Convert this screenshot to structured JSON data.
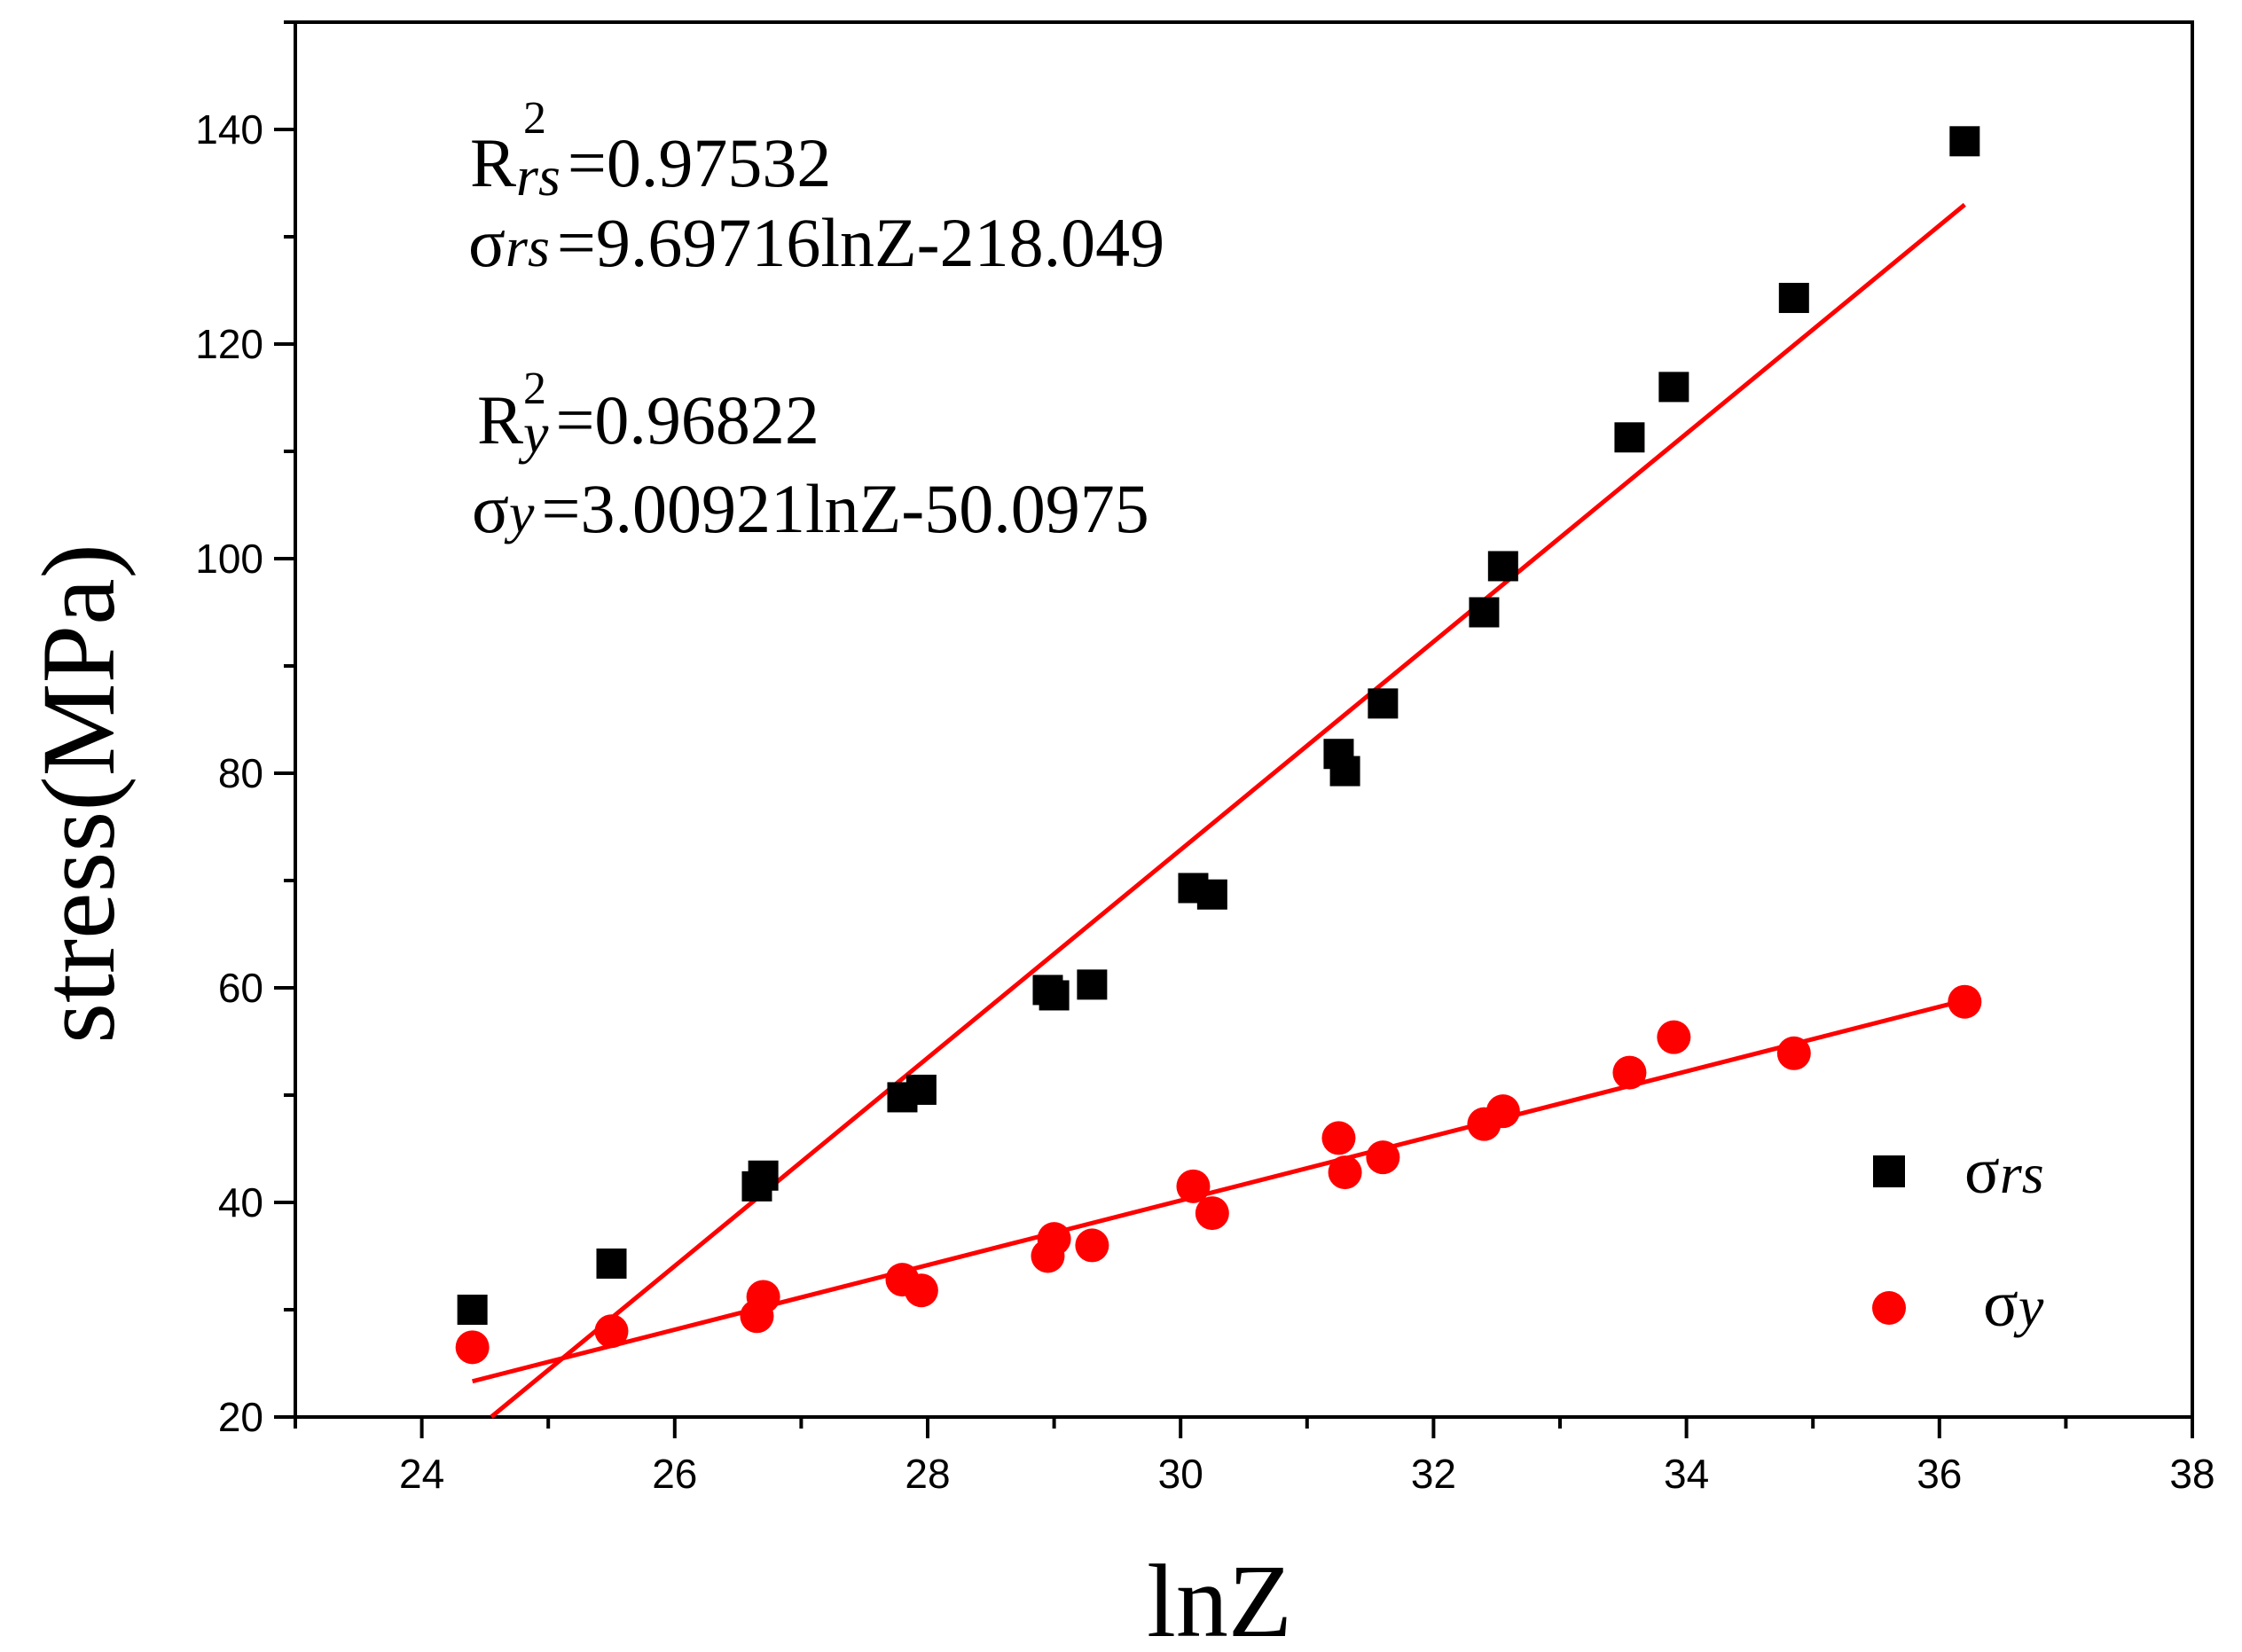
{
  "chart_data": {
    "type": "scatter",
    "xlabel": "lnZ",
    "ylabel": "stress(MPa)",
    "xlim": [
      23,
      38
    ],
    "ylim": [
      20,
      150
    ],
    "xticks": [
      24,
      26,
      28,
      30,
      32,
      34,
      36,
      38
    ],
    "yticks": [
      20,
      40,
      60,
      80,
      100,
      120,
      140
    ],
    "grid": false,
    "legend_position": "bottom-right",
    "series": [
      {
        "name": "σrs",
        "symbol": "σ",
        "subscript": "rs",
        "marker": "square",
        "color": "#000000",
        "x": [
          24.4,
          25.5,
          26.65,
          26.7,
          27.8,
          27.95,
          28.95,
          29.0,
          29.3,
          30.1,
          30.25,
          31.25,
          31.3,
          31.6,
          32.4,
          32.55,
          33.55,
          33.9,
          34.85,
          36.2
        ],
        "y": [
          30,
          34.3,
          41.5,
          42.5,
          49.8,
          50.5,
          59.8,
          59.3,
          60.3,
          69.3,
          68.7,
          81.8,
          80.2,
          86.5,
          95.0,
          99.3,
          111.3,
          116.0,
          124.3,
          138.9
        ],
        "fit": {
          "slope": 9.69716,
          "intercept": -218.049,
          "x_range": [
            24.55,
            36.2
          ],
          "color": "#ff0000",
          "r2_label_main": "R",
          "r2_label_sub": "rs",
          "r2_label_sup": "2",
          "r2_value": "=0.97532",
          "equation_symbol": "σ",
          "equation_sub": "rs",
          "equation": "=9.69716lnZ-218.049"
        }
      },
      {
        "name": "σy",
        "symbol": "σ",
        "subscript": "y",
        "marker": "circle",
        "color": "#ff0000",
        "x": [
          24.4,
          25.5,
          26.65,
          26.7,
          27.8,
          27.95,
          28.95,
          29.0,
          29.3,
          30.1,
          30.25,
          31.25,
          31.3,
          31.6,
          32.4,
          32.55,
          33.55,
          33.9,
          34.85,
          36.2
        ],
        "y": [
          26.5,
          28.0,
          29.4,
          31.2,
          32.8,
          31.8,
          35.0,
          36.6,
          36.0,
          41.5,
          39.0,
          46.0,
          42.8,
          44.2,
          47.3,
          48.5,
          52.1,
          55.4,
          53.9,
          58.7
        ],
        "fit": {
          "slope": 3.00921,
          "intercept": -50.0975,
          "x_range": [
            24.4,
            36.2
          ],
          "color": "#ff0000",
          "r2_label_main": "R",
          "r2_label_sub": "y",
          "r2_label_sup": "2",
          "r2_value": "=0.96822",
          "equation_symbol": "σ",
          "equation_sub": "y",
          "equation": "=3.00921lnZ-50.0975"
        }
      }
    ]
  }
}
